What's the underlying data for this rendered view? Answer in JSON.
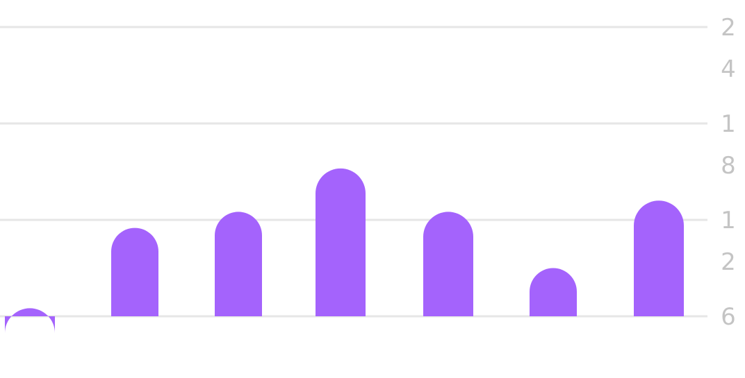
{
  "chart_data": {
    "type": "bar",
    "title": "",
    "xlabel": "",
    "ylabel": "",
    "categories": [
      "",
      "",
      "",
      "",
      "",
      "",
      ""
    ],
    "values": [
      6.5,
      11.5,
      12.5,
      15.2,
      12.5,
      9.0,
      13.2
    ],
    "ylim": [
      6,
      24
    ],
    "y_axis_side": "right",
    "y_ticks": [
      {
        "value": 24,
        "label": "2\n4"
      },
      {
        "value": 18,
        "label": "1\n8"
      },
      {
        "value": 12,
        "label": "1\n2"
      },
      {
        "value": 6,
        "label": "6"
      }
    ],
    "grid": true,
    "legend": "none",
    "bar_color": "#a463fc",
    "grid_color": "#e6e6e6",
    "tick_color": "#c4c4c4"
  }
}
